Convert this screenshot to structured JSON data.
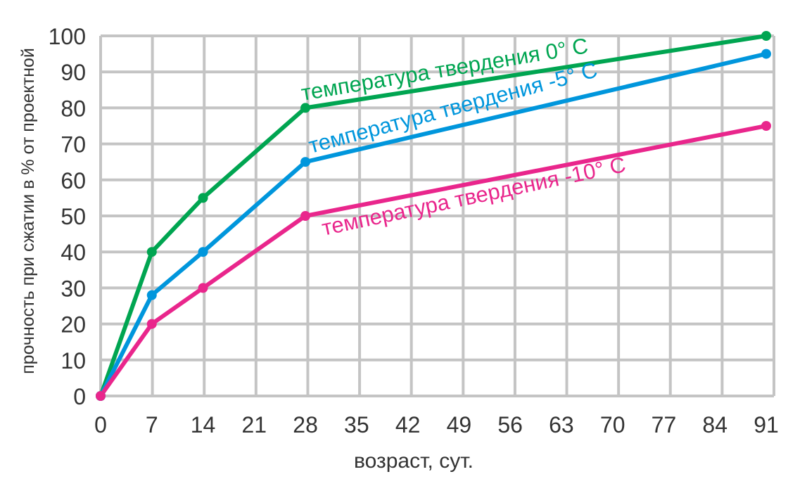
{
  "chart_data": {
    "type": "line",
    "title": "",
    "xlabel": "возраст, сут.",
    "ylabel": "прочность при сжатии в % от проектной",
    "x_ticks": [
      0,
      7,
      14,
      21,
      28,
      35,
      42,
      49,
      56,
      63,
      70,
      77,
      84,
      91
    ],
    "y_ticks": [
      0,
      10,
      20,
      30,
      40,
      50,
      60,
      70,
      80,
      90,
      100
    ],
    "xlim": [
      0,
      91
    ],
    "ylim": [
      0,
      100
    ],
    "grid": true,
    "series": [
      {
        "name": "температура твердения 0° С",
        "color": "#00a551",
        "x": [
          0,
          7,
          14,
          28,
          91
        ],
        "y": [
          0,
          40,
          55,
          80,
          100
        ]
      },
      {
        "name": "температура твердения -5° С",
        "color": "#0096dc",
        "x": [
          0,
          7,
          14,
          28,
          91
        ],
        "y": [
          0,
          28,
          40,
          65,
          95
        ]
      },
      {
        "name": "температура твердения -10° С",
        "color": "#e9268c",
        "x": [
          0,
          7,
          14,
          28,
          91
        ],
        "y": [
          0,
          20,
          30,
          50,
          75
        ]
      }
    ]
  }
}
